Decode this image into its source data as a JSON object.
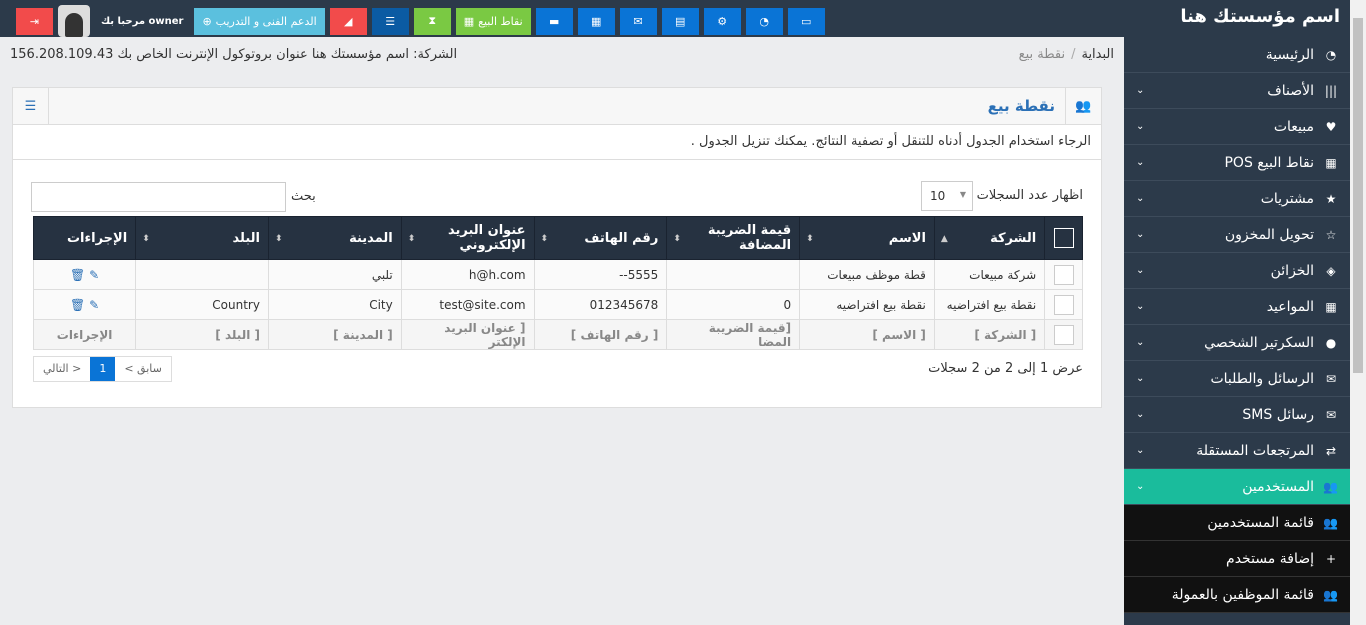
{
  "brand": "اسم مؤسستك هنا",
  "topbar": {
    "welcome": "مرحبا بك owner",
    "support": "الدعم الفنى و التدريب",
    "pos": "نقاط البيع",
    "colors": {
      "blue": "#0a74d6",
      "green": "#7ac943",
      "red": "#f24b4b",
      "sky": "#5bc0de",
      "navy": "#0b5ba3"
    }
  },
  "breadcrumb": {
    "home": "البداية",
    "current": "نقطة بيع",
    "info": "الشركة: اسم مؤسستك هنا عنوان بروتوكول الإنترنت الخاص بك 156.208.109.43"
  },
  "sidebar": {
    "items": [
      {
        "label": "الرئيسية",
        "icon": "dashboard-icon",
        "glyph": "◔",
        "chev": false
      },
      {
        "label": "الأصناف",
        "icon": "barcode-icon",
        "glyph": "|||",
        "chev": true
      },
      {
        "label": "مبيعات",
        "icon": "heart-icon",
        "glyph": "♥",
        "chev": true
      },
      {
        "label": "نقاط البيع POS",
        "icon": "grid-icon",
        "glyph": "▦",
        "chev": true
      },
      {
        "label": "مشتريات",
        "icon": "star-icon",
        "glyph": "★",
        "chev": true
      },
      {
        "label": "تحويل المخزون",
        "icon": "star-outline-icon",
        "glyph": "☆",
        "chev": true
      },
      {
        "label": "الخزائن",
        "icon": "cube-icon",
        "glyph": "◈",
        "chev": true
      },
      {
        "label": "المواعيد",
        "icon": "calendar-icon",
        "glyph": "▦",
        "chev": true
      },
      {
        "label": "السكرتير الشخصي",
        "icon": "user-icon",
        "glyph": "●",
        "chev": true
      },
      {
        "label": "الرسائل والطلبات",
        "icon": "envelope-icon",
        "glyph": "✉",
        "chev": true
      },
      {
        "label": "رسائل SMS",
        "icon": "envelope-icon",
        "glyph": "✉",
        "chev": true
      },
      {
        "label": "المرتجعات المستقلة",
        "icon": "shuffle-icon",
        "glyph": "⇄",
        "chev": true
      },
      {
        "label": "المستخدمين",
        "icon": "users-icon",
        "glyph": "👥",
        "chev": true,
        "active": true
      },
      {
        "label": "قائمة المستخدمين",
        "icon": "users-icon",
        "glyph": "👥",
        "sub": true
      },
      {
        "label": "إضافة مستخدم",
        "icon": "user-plus-icon",
        "glyph": "+",
        "sub": true
      },
      {
        "label": "قائمة الموظفين بالعمولة",
        "icon": "users-icon",
        "glyph": "👥",
        "sub": true
      }
    ],
    "active_color": "#1abc9c"
  },
  "panel": {
    "title": "نقطة بيع",
    "description": "الرجاء استخدام الجدول أدناه للتنقل أو تصفية النتائج. يمكنك تنزيل الجدول .",
    "length_label": "اظهار عدد السجلات",
    "length_value": "10",
    "search_label": "بحث",
    "search_value": ""
  },
  "table": {
    "headers": [
      "الشركة",
      "الاسم",
      "قيمة الضريبة المضافة",
      "رقم الهاتف",
      "عنوان البريد الإلكتروني",
      "المدينة",
      "البلد",
      "الإجراءات"
    ],
    "rows": [
      [
        "شركة مبيعات",
        "قطة موظف مبيعات",
        "",
        "5555--",
        "h@h.com",
        "تلبي",
        ""
      ],
      [
        "نقطة بيع افتراضيه",
        "نقطة بيع افتراضيه",
        "0",
        "012345678",
        "test@site.com",
        "City",
        "Country"
      ]
    ],
    "footer": [
      "[ الشركة ]",
      "[ الاسم ]",
      "[قيمة الضريبة المضا",
      "[ رقم الهاتف ]",
      "[ عنوان البريد الإلكتر",
      "[ المدينة ]",
      "[ البلد ]",
      "الإجراءات"
    ]
  },
  "summary": "عرض 1 إلى 2 من 2 سجلات",
  "pager": {
    "prev": "< سابق",
    "page": "1",
    "next": "التالي >"
  }
}
